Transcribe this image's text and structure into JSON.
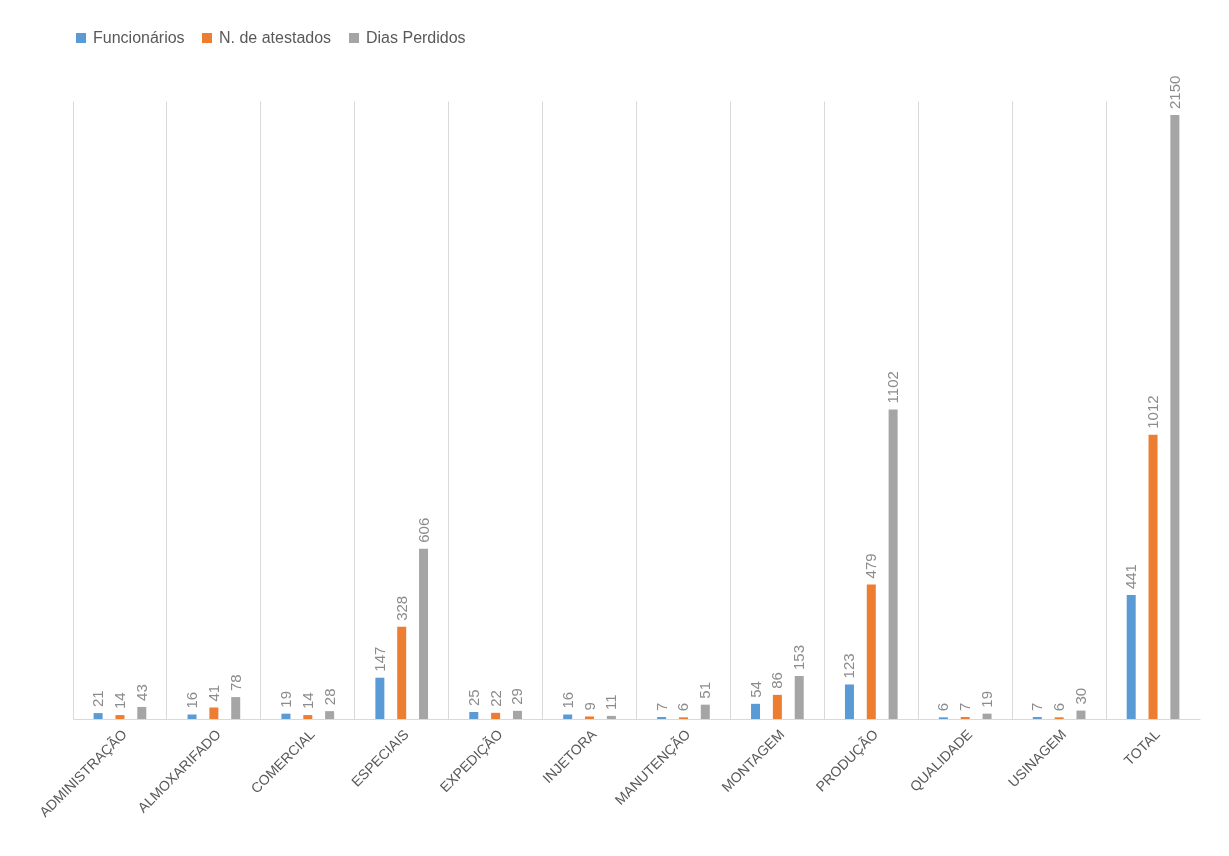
{
  "chart_data": {
    "type": "bar",
    "categories": [
      "ADMINISTRAÇÃO",
      "ALMOXARIFADO",
      "COMERCIAL",
      "ESPECIAIS",
      "EXPEDIÇÃO",
      "INJETORA",
      "MANUTENÇÃO",
      "MONTAGEM",
      "PRODUÇÃO",
      "QUALIDADE",
      "USINAGEM",
      "TOTAL"
    ],
    "series": [
      {
        "name": "Funcionários",
        "color": "#5b9bd5",
        "values": [
          21,
          16,
          19,
          147,
          25,
          16,
          7,
          54,
          123,
          6,
          7,
          441
        ]
      },
      {
        "name": "N. de atestados",
        "color": "#ed7d31",
        "values": [
          14,
          41,
          14,
          328,
          22,
          9,
          6,
          86,
          479,
          7,
          6,
          1012
        ]
      },
      {
        "name": "Dias Perdidos",
        "color": "#a5a5a5",
        "values": [
          43,
          78,
          28,
          606,
          29,
          11,
          51,
          153,
          1102,
          19,
          30,
          2150
        ]
      }
    ],
    "data_labels": true,
    "grid": "x",
    "legend": "top"
  }
}
